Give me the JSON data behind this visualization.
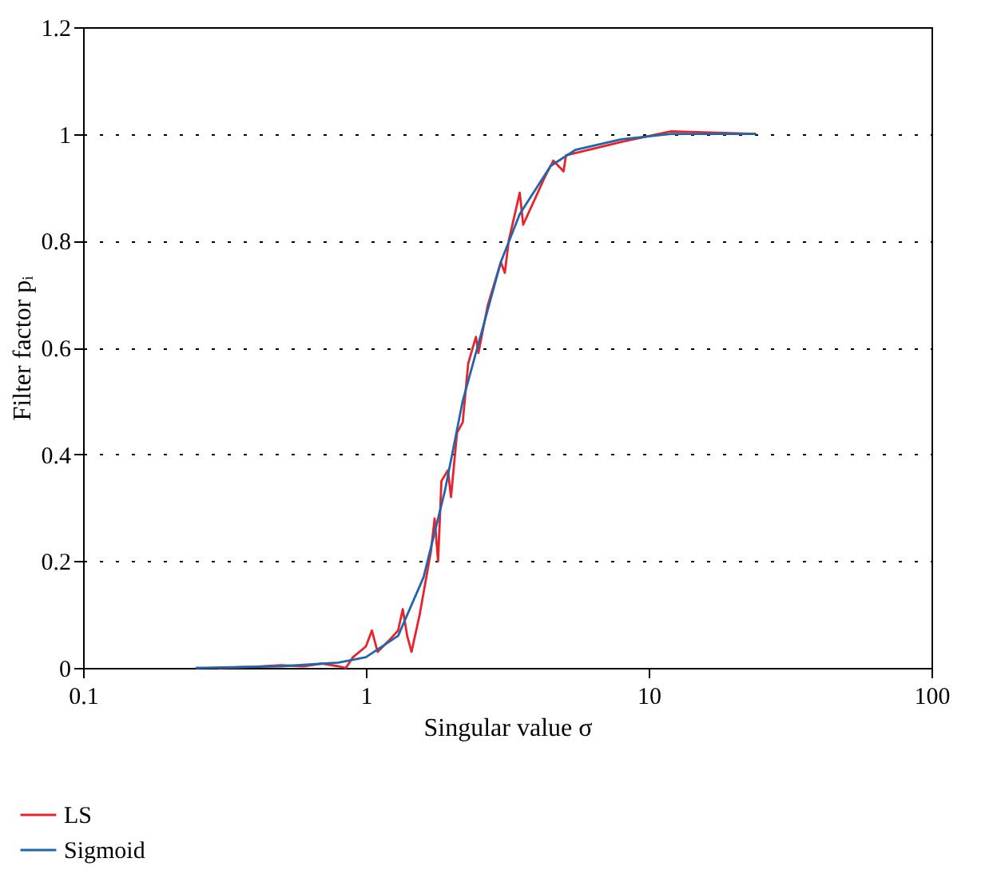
{
  "chart_data": {
    "type": "line",
    "xlabel": "Singular value σ",
    "ylabel": "Filter factor pᵢ",
    "log": "x",
    "xlim": [
      0.1,
      100
    ],
    "xticks": [
      0.1,
      1,
      10,
      100
    ],
    "ylim": [
      0,
      1.2
    ],
    "yticks": [
      0,
      0.2,
      0.4,
      0.6,
      0.8,
      1,
      1.2
    ],
    "grid": "y",
    "legend": "bottom",
    "line_style": "solid",
    "marker": "none",
    "series": [
      {
        "name": "LS",
        "color": "#e8242b",
        "x": [
          0.3,
          0.4,
          0.5,
          0.6,
          0.7,
          0.8,
          0.85,
          0.9,
          1.0,
          1.05,
          1.1,
          1.2,
          1.3,
          1.35,
          1.4,
          1.45,
          1.55,
          1.7,
          1.75,
          1.8,
          1.85,
          1.95,
          2.0,
          2.1,
          2.2,
          2.3,
          2.45,
          2.5,
          2.7,
          3.0,
          3.1,
          3.2,
          3.5,
          3.6,
          4.3,
          4.6,
          5.0,
          5.1,
          8,
          12,
          24
        ],
        "values": [
          0,
          0.002,
          0.005,
          0.003,
          0.008,
          0.003,
          0.0,
          0.02,
          0.04,
          0.07,
          0.03,
          0.05,
          0.07,
          0.11,
          0.06,
          0.03,
          0.1,
          0.22,
          0.28,
          0.2,
          0.35,
          0.37,
          0.32,
          0.44,
          0.46,
          0.57,
          0.62,
          0.59,
          0.68,
          0.76,
          0.74,
          0.8,
          0.89,
          0.83,
          0.92,
          0.95,
          0.93,
          0.96,
          0.985,
          1.005,
          1.0
        ]
      },
      {
        "name": "Sigmoid",
        "color": "#2166ac",
        "x": [
          0.25,
          0.5,
          0.8,
          1.0,
          1.3,
          1.6,
          1.9,
          2.2,
          2.6,
          3.0,
          3.5,
          4.5,
          5.5,
          8,
          12,
          24
        ],
        "values": [
          0,
          0.003,
          0.01,
          0.02,
          0.06,
          0.17,
          0.33,
          0.5,
          0.64,
          0.76,
          0.85,
          0.94,
          0.97,
          0.99,
          1.0,
          1.0
        ]
      }
    ]
  }
}
